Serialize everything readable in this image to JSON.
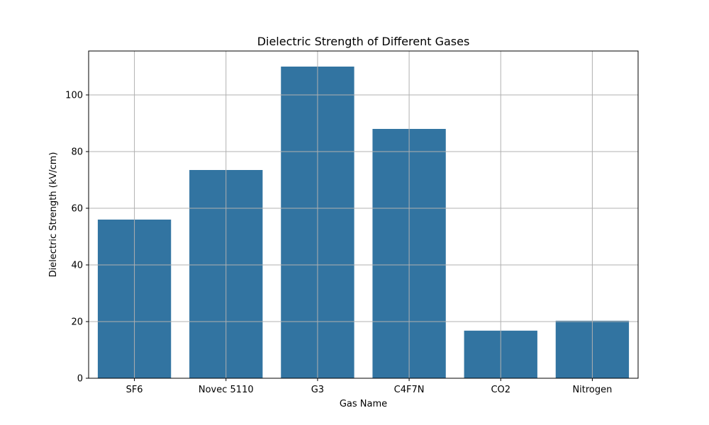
{
  "chart_data": {
    "type": "bar",
    "title": "Dielectric Strength of Different Gases",
    "xlabel": "Gas Name",
    "ylabel": "Dielectric Strength (kV/cm)",
    "categories": [
      "SF6",
      "Novec 5110",
      "G3",
      "C4F7N",
      "CO2",
      "Nitrogen"
    ],
    "values": [
      56.0,
      73.5,
      110.0,
      88.0,
      16.8,
      20.3
    ],
    "ylim": [
      0,
      115.5
    ],
    "yticks": [
      0,
      20,
      40,
      60,
      80,
      100
    ],
    "ytick_labels": [
      "0",
      "20",
      "40",
      "60",
      "80",
      "100"
    ],
    "grid": true,
    "bar_color": "#3274a1"
  }
}
